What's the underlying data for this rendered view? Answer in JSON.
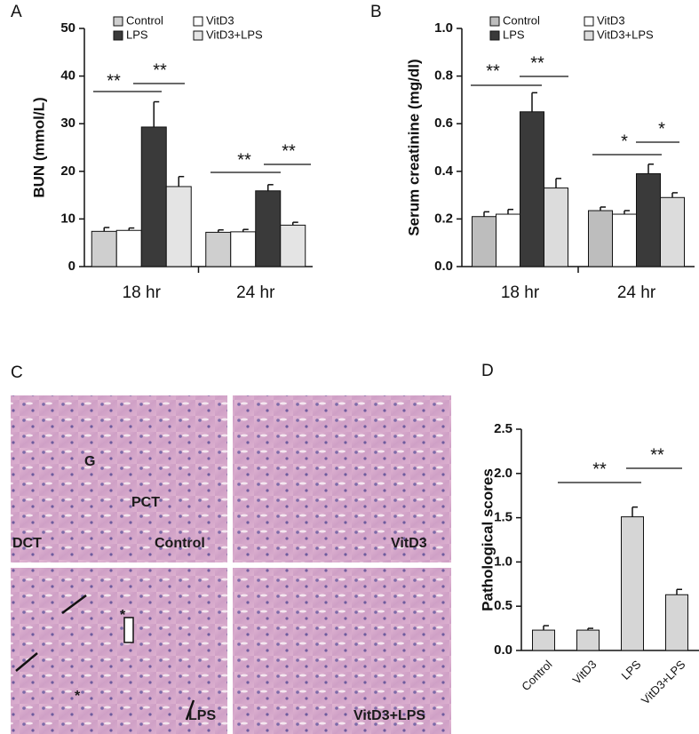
{
  "chart_data": [
    {
      "type": "bar",
      "panel": "A",
      "ylabel": "BUN (mmol/L)",
      "categories": [
        "18 hr",
        "24 hr"
      ],
      "series": [
        {
          "name": "Control",
          "color": "#cfcfcf",
          "values": [
            7.4,
            7.2
          ],
          "errors": [
            0.8,
            0.5
          ]
        },
        {
          "name": "VitD3",
          "color": "#ffffff",
          "values": [
            7.6,
            7.3
          ],
          "errors": [
            0.5,
            0.5
          ]
        },
        {
          "name": "LPS",
          "color": "#3a3a3a",
          "values": [
            29.3,
            15.9
          ],
          "errors": [
            5.3,
            1.3
          ]
        },
        {
          "name": "VitD3+LPS",
          "color": "#e4e4e4",
          "values": [
            16.8,
            8.7
          ],
          "errors": [
            2.1,
            0.6
          ]
        }
      ],
      "ylim": [
        0,
        50
      ],
      "yticks": [
        0,
        10,
        20,
        30,
        40,
        50
      ],
      "legend": "top",
      "annotations": [
        "**",
        "**",
        "**",
        "**"
      ]
    },
    {
      "type": "bar",
      "panel": "B",
      "ylabel": "Serum creatinine (mg/dl)",
      "categories": [
        "18 hr",
        "24 hr"
      ],
      "series": [
        {
          "name": "Control",
          "color": "#bdbdbd",
          "values": [
            0.21,
            0.235
          ],
          "errors": [
            0.02,
            0.015
          ]
        },
        {
          "name": "VitD3",
          "color": "#ffffff",
          "values": [
            0.22,
            0.22
          ],
          "errors": [
            0.02,
            0.015
          ]
        },
        {
          "name": "LPS",
          "color": "#3a3a3a",
          "values": [
            0.65,
            0.39
          ],
          "errors": [
            0.08,
            0.04
          ]
        },
        {
          "name": "VitD3+LPS",
          "color": "#dcdcdc",
          "values": [
            0.33,
            0.29
          ],
          "errors": [
            0.04,
            0.02
          ]
        }
      ],
      "ylim": [
        0,
        1.0
      ],
      "yticks": [
        {
          "value": 0,
          "label": "0.0"
        },
        0.2,
        0.4,
        0.6,
        0.8,
        {
          "value": 1.0,
          "label": "1.0"
        }
      ],
      "legend": "top",
      "annotations": [
        "**",
        "**",
        "*",
        "*"
      ]
    },
    {
      "type": "bar",
      "panel": "D",
      "ylabel": "Pathological scores",
      "categories": [
        "Control",
        "VitD3",
        "LPS",
        "VitD3+LPS"
      ],
      "values": [
        0.23,
        0.23,
        1.51,
        0.63
      ],
      "errors": [
        0.05,
        0.02,
        0.11,
        0.06
      ],
      "color": "#d6d6d6",
      "ylim": [
        0,
        2.5
      ],
      "yticks": [
        {
          "value": 0,
          "label": "0.0"
        },
        0.5,
        {
          "value": 1.0,
          "label": "1.0"
        },
        1.5,
        {
          "value": 2.0,
          "label": "2.0"
        },
        2.5
      ],
      "annotations": [
        "**",
        "**"
      ]
    }
  ],
  "panel_c": {
    "label": "C",
    "images": [
      {
        "caption": "Control",
        "labels": [
          "G",
          "PCT",
          "DCT"
        ]
      },
      {
        "caption": "VitD3"
      },
      {
        "caption": "LPS",
        "labels": [
          "*",
          "*"
        ]
      },
      {
        "caption": "VitD3+LPS"
      }
    ]
  }
}
